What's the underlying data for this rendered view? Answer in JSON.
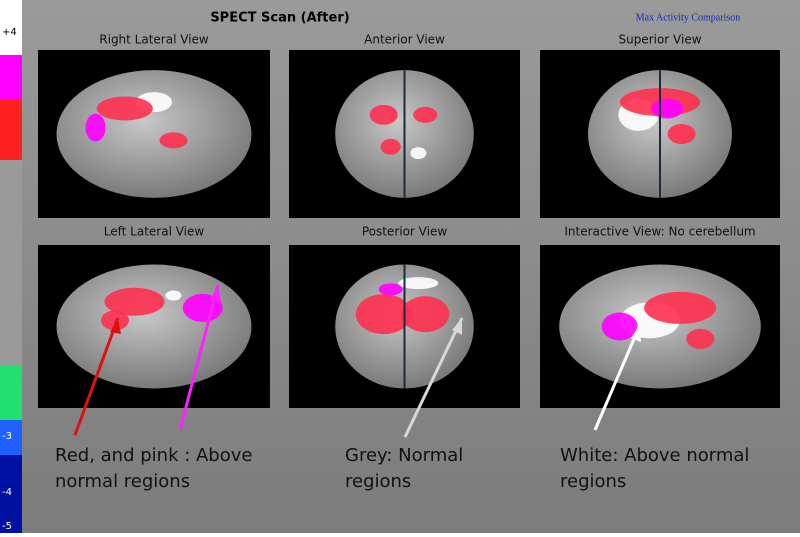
{
  "header": {
    "title": "SPECT Scan (After)",
    "subtitle": "Max Activity Comparison"
  },
  "scale": {
    "labels": [
      "+4",
      "-3",
      "-4",
      "-5"
    ]
  },
  "views": [
    {
      "label": "Right Lateral View"
    },
    {
      "label": "Anterior View"
    },
    {
      "label": "Superior View"
    },
    {
      "label": "Left Lateral View"
    },
    {
      "label": "Posterior View"
    },
    {
      "label": "Interactive View: No cerebellum"
    }
  ],
  "annotations": [
    {
      "lines": [
        "Red, and pink : Above",
        "normal regions"
      ]
    },
    {
      "lines": [
        "Grey: Normal",
        "regions"
      ]
    },
    {
      "lines": [
        "White: Above normal",
        "regions"
      ]
    }
  ]
}
